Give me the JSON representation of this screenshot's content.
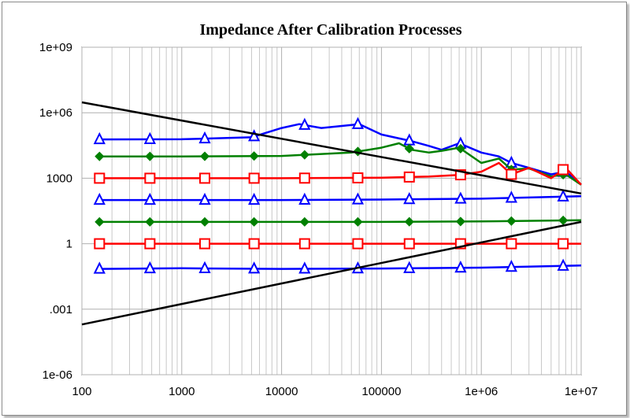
{
  "chart_data": {
    "type": "line",
    "title": "Impedance After Calibration Processes",
    "xlabel": "",
    "ylabel": "",
    "x_scale": "log",
    "y_scale": "log",
    "xlim": [
      100,
      10000000
    ],
    "ylim": [
      1e-06,
      1000000000
    ],
    "x_ticks": [
      100,
      1000,
      10000,
      100000,
      1000000,
      10000000
    ],
    "x_tick_labels": [
      "100",
      "1000",
      "10000",
      "100000",
      "1e+06",
      "1e+07"
    ],
    "y_ticks": [
      1000000000,
      1000000,
      1000,
      1,
      0.001,
      1e-06
    ],
    "y_tick_labels": [
      "1e+09",
      "1e+06",
      "1000",
      "1",
      ".001",
      "1e-06"
    ],
    "grid": true,
    "legend": "none",
    "marker_x": [
      150,
      480,
      1700,
      5300,
      17000,
      58000,
      190000,
      620000,
      2000000,
      6600000
    ],
    "series": [
      {
        "color": "#0000ff",
        "marker": "triangle",
        "x": [
          150,
          1000,
          5000,
          10000,
          15000,
          25000,
          60000,
          100000,
          200000,
          300000,
          400000,
          600000,
          1000000,
          1500000,
          2000000,
          3000000,
          5000000,
          7000000,
          10000000
        ],
        "y": [
          60000,
          61000,
          75000,
          200000,
          300000,
          200000,
          300000,
          100000,
          50000,
          30000,
          20000,
          40000,
          15000,
          10000,
          5000,
          3000,
          1500,
          2000,
          500
        ]
      },
      {
        "color": "#008000",
        "marker": "diamond",
        "x": [
          150,
          1000,
          10000,
          50000,
          100000,
          150000,
          200000,
          300000,
          400000,
          600000,
          1000000,
          1500000,
          2000000,
          3000000,
          5000000,
          7000000,
          10000000
        ],
        "y": [
          10000,
          10000,
          10500,
          15000,
          25000,
          40000,
          20000,
          15000,
          18000,
          25000,
          5000,
          8000,
          2500,
          2800,
          1200,
          1500,
          500
        ]
      },
      {
        "color": "#ff0000",
        "marker": "square",
        "x": [
          150,
          1000,
          10000,
          100000,
          300000,
          600000,
          1000000,
          1500000,
          2000000,
          3000000,
          5000000,
          7000000,
          10000000
        ],
        "y": [
          1000,
          1000,
          1000,
          1050,
          1200,
          1400,
          2000,
          5000,
          1500,
          3000,
          1000,
          3000,
          500
        ]
      },
      {
        "color": "#0000ff",
        "marker": "triangle",
        "x": [
          150,
          10000,
          100000,
          1000000,
          10000000
        ],
        "y": [
          100,
          100,
          105,
          115,
          150
        ]
      },
      {
        "color": "#008000",
        "marker": "diamond",
        "x": [
          150,
          10000,
          100000,
          1000000,
          10000000
        ],
        "y": [
          10,
          10,
          10,
          10.5,
          12
        ]
      },
      {
        "color": "#ff0000",
        "marker": "square",
        "x": [
          150,
          10000,
          100000,
          1000000,
          10000000
        ],
        "y": [
          1,
          1,
          1,
          1,
          1
        ]
      },
      {
        "color": "#0000ff",
        "marker": "triangle",
        "x": [
          150,
          1000,
          10000,
          100000,
          1000000,
          10000000
        ],
        "y": [
          0.07,
          0.075,
          0.07,
          0.073,
          0.08,
          0.1
        ]
      },
      {
        "color": "#000000",
        "marker": "none",
        "x": [
          100,
          10000000
        ],
        "y": [
          3000000,
          200
        ]
      },
      {
        "color": "#000000",
        "marker": "none",
        "x": [
          100,
          10000000
        ],
        "y": [
          0.0002,
          10
        ]
      }
    ]
  }
}
